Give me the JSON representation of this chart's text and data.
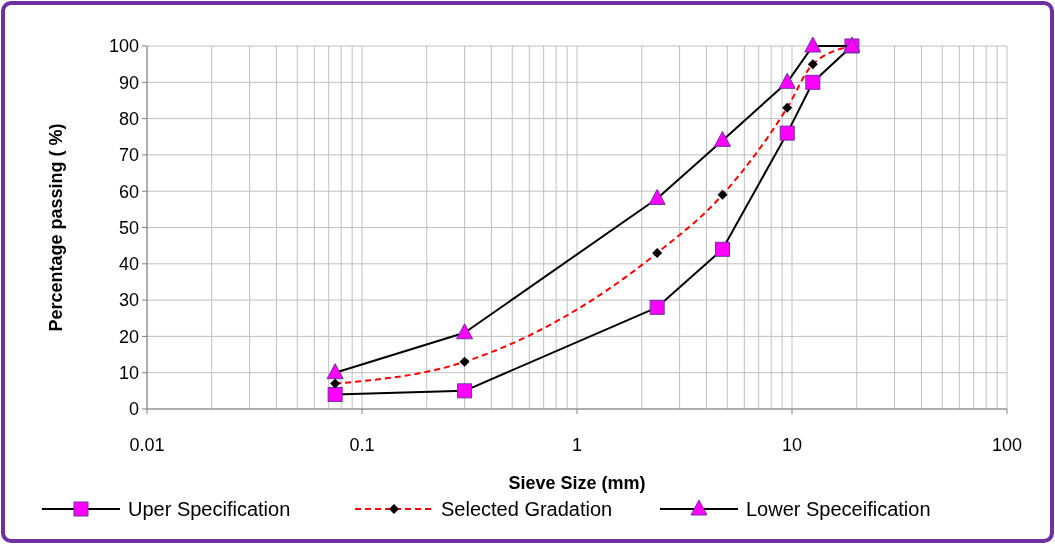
{
  "chart_data": {
    "type": "line",
    "xlabel": "Sieve Size (mm)",
    "ylabel": "Percentage passing ( %)",
    "log": "x",
    "xlim": [
      0.01,
      100
    ],
    "xticks": [
      0.01,
      {
        "value": 0.02,
        "label": null
      },
      {
        "value": 0.03,
        "label": null
      },
      {
        "value": 0.04,
        "label": null
      },
      {
        "value": 0.05,
        "label": null
      },
      {
        "value": 0.06,
        "label": null
      },
      {
        "value": 0.07,
        "label": null
      },
      {
        "value": 0.08,
        "label": null
      },
      {
        "value": 0.09,
        "label": null
      },
      0.1,
      {
        "value": 0.2,
        "label": null
      },
      {
        "value": 0.3,
        "label": null
      },
      {
        "value": 0.4,
        "label": null
      },
      {
        "value": 0.5,
        "label": null
      },
      {
        "value": 0.6,
        "label": null
      },
      {
        "value": 0.7,
        "label": null
      },
      {
        "value": 0.8,
        "label": null
      },
      {
        "value": 0.9,
        "label": null
      },
      1,
      {
        "value": 2,
        "label": null
      },
      {
        "value": 3,
        "label": null
      },
      {
        "value": 4,
        "label": null
      },
      {
        "value": 5,
        "label": null
      },
      {
        "value": 6,
        "label": null
      },
      {
        "value": 7,
        "label": null
      },
      {
        "value": 8,
        "label": null
      },
      {
        "value": 9,
        "label": null
      },
      10,
      {
        "value": 20,
        "label": null
      },
      {
        "value": 30,
        "label": null
      },
      {
        "value": 40,
        "label": null
      },
      {
        "value": 50,
        "label": null
      },
      {
        "value": 60,
        "label": null
      },
      {
        "value": 70,
        "label": null
      },
      {
        "value": 80,
        "label": null
      },
      {
        "value": 90,
        "label": null
      },
      100
    ],
    "ylim": [
      0,
      100
    ],
    "yticks": [
      0,
      10,
      20,
      30,
      40,
      50,
      60,
      70,
      80,
      90,
      100
    ],
    "grid": true,
    "legend": "bottom",
    "x": [
      0.075,
      0.3,
      2.36,
      4.75,
      9.5,
      12.5,
      19
    ],
    "series": [
      {
        "name": "Uper Specification",
        "color": "#000000",
        "marker": "square",
        "line_style": "solid",
        "values": [
          4,
          5,
          28,
          44,
          76,
          90,
          100
        ]
      },
      {
        "name": "Selected Gradation",
        "color": "#ff0000",
        "marker": "diamond",
        "line_style": "dashed",
        "values": [
          7,
          13,
          43,
          59,
          83,
          95,
          100
        ]
      },
      {
        "name": "Lower Speceification",
        "color": "#000000",
        "marker": "triangle",
        "line_style": "solid",
        "values": [
          10,
          21,
          58,
          74,
          90,
          100,
          100
        ]
      }
    ]
  }
}
